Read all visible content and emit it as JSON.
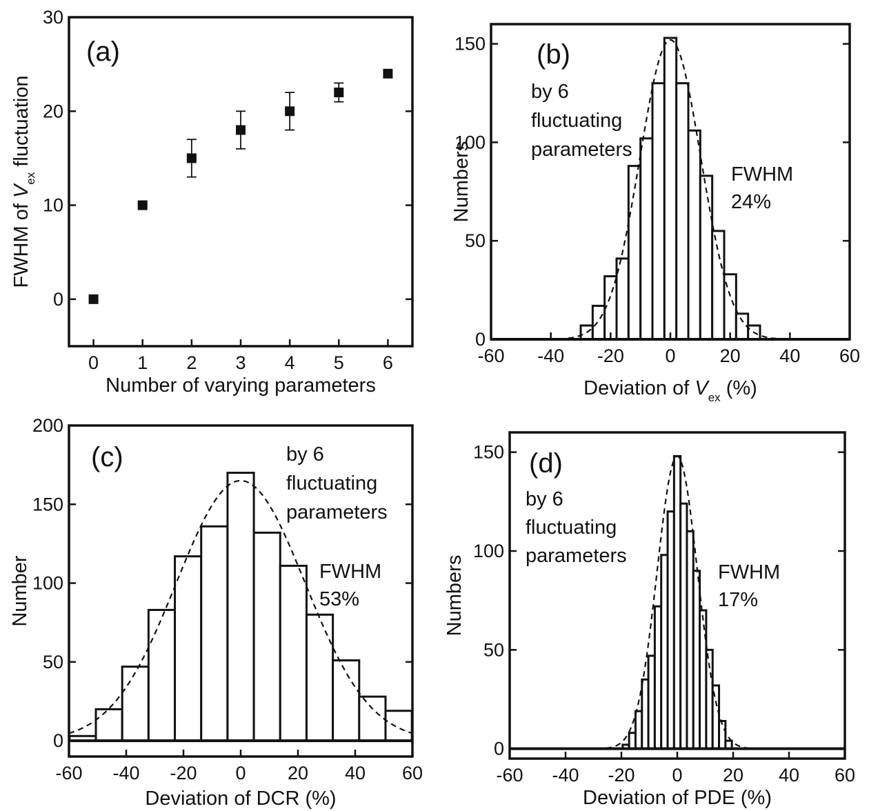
{
  "chart_data": [
    {
      "id": "a",
      "type": "scatter",
      "panel_label": "(a)",
      "xlabel": "Number of varying parameters",
      "ylabel": "FWHM of V",
      "ylabel_sub": "ex",
      "ylabel_suffix": " fluctuation",
      "xlim": [
        -0.5,
        6.5
      ],
      "ylim": [
        -5,
        30
      ],
      "xticks": [
        0,
        1,
        2,
        3,
        4,
        5,
        6
      ],
      "yticks": [
        0,
        10,
        20,
        30
      ],
      "grid": false,
      "points": [
        {
          "x": 0,
          "y": 0,
          "err": 0
        },
        {
          "x": 1,
          "y": 10,
          "err": 0
        },
        {
          "x": 2,
          "y": 15,
          "err": 2
        },
        {
          "x": 3,
          "y": 18,
          "err": 2
        },
        {
          "x": 4,
          "y": 20,
          "err": 2
        },
        {
          "x": 5,
          "y": 22,
          "err": 1
        },
        {
          "x": 6,
          "y": 24,
          "err": 0
        }
      ]
    },
    {
      "id": "b",
      "type": "bar",
      "panel_label": "(b)",
      "xlabel": "Deviation of V",
      "xlabel_sub": "ex",
      "xlabel_suffix": " (%)",
      "ylabel": "Numbers",
      "xlim": [
        -60,
        60
      ],
      "ylim": [
        0,
        160
      ],
      "xticks": [
        -60,
        -40,
        -20,
        0,
        20,
        40,
        60
      ],
      "yticks": [
        0,
        50,
        100,
        150
      ],
      "grid": false,
      "annotations": [
        "by 6",
        "fluctuating",
        "parameters"
      ],
      "fwhm_label": [
        "FWHM",
        "24%"
      ],
      "fit": {
        "amplitude": 152,
        "center": 0,
        "fwhm": 24
      },
      "bin_width": 4,
      "bins": [
        {
          "x": -28,
          "value": 7
        },
        {
          "x": -24,
          "value": 17
        },
        {
          "x": -20,
          "value": 32
        },
        {
          "x": -16,
          "value": 41
        },
        {
          "x": -12,
          "value": 88
        },
        {
          "x": -8,
          "value": 102
        },
        {
          "x": -4,
          "value": 130
        },
        {
          "x": 0,
          "value": 153
        },
        {
          "x": 4,
          "value": 130
        },
        {
          "x": 8,
          "value": 106
        },
        {
          "x": 12,
          "value": 83
        },
        {
          "x": 16,
          "value": 55
        },
        {
          "x": 20,
          "value": 33
        },
        {
          "x": 24,
          "value": 13
        },
        {
          "x": 28,
          "value": 7
        }
      ]
    },
    {
      "id": "c",
      "type": "bar",
      "panel_label": "(c)",
      "xlabel": "Deviation of DCR (%)",
      "ylabel": "Number",
      "xlim": [
        -60,
        60
      ],
      "ylim": [
        -10,
        200
      ],
      "xticks": [
        -60,
        -40,
        -20,
        0,
        20,
        40,
        60
      ],
      "yticks": [
        0,
        50,
        100,
        150,
        200
      ],
      "grid": false,
      "annotations": [
        "by 6",
        "fluctuating",
        "parameters"
      ],
      "fwhm_label": [
        "FWHM",
        "53%"
      ],
      "fit": {
        "amplitude": 165,
        "center": 0,
        "fwhm": 53
      },
      "bin_width": 9.2,
      "bins": [
        {
          "x": -55.2,
          "value": 3
        },
        {
          "x": -46,
          "value": 20
        },
        {
          "x": -36.8,
          "value": 47
        },
        {
          "x": -27.6,
          "value": 83
        },
        {
          "x": -18.4,
          "value": 117
        },
        {
          "x": -9.2,
          "value": 136
        },
        {
          "x": 0,
          "value": 170
        },
        {
          "x": 9.2,
          "value": 132
        },
        {
          "x": 18.4,
          "value": 111
        },
        {
          "x": 27.6,
          "value": 80
        },
        {
          "x": 36.8,
          "value": 51
        },
        {
          "x": 46,
          "value": 28
        },
        {
          "x": 55.2,
          "value": 19
        }
      ]
    },
    {
      "id": "d",
      "type": "bar",
      "panel_label": "(d)",
      "xlabel": "Deviation of PDE (%)",
      "ylabel": "Numbers",
      "xlim": [
        -60,
        60
      ],
      "ylim": [
        -5,
        160
      ],
      "xticks": [
        -60,
        -40,
        -20,
        0,
        20,
        40,
        60
      ],
      "yticks": [
        0,
        50,
        100,
        150
      ],
      "grid": false,
      "annotations": [
        "by 6",
        "fluctuating",
        "parameters"
      ],
      "fwhm_label": [
        "FWHM",
        "17%"
      ],
      "fit": {
        "amplitude": 148,
        "center": 0,
        "fwhm": 17
      },
      "bin_width": 2.3,
      "bins": [
        {
          "x": -18.4,
          "value": 2
        },
        {
          "x": -16.1,
          "value": 8
        },
        {
          "x": -13.8,
          "value": 19
        },
        {
          "x": -11.5,
          "value": 35
        },
        {
          "x": -9.2,
          "value": 47
        },
        {
          "x": -6.9,
          "value": 72
        },
        {
          "x": -4.6,
          "value": 98
        },
        {
          "x": -2.3,
          "value": 120
        },
        {
          "x": 0,
          "value": 148
        },
        {
          "x": 2.3,
          "value": 124
        },
        {
          "x": 4.6,
          "value": 110
        },
        {
          "x": 6.9,
          "value": 90
        },
        {
          "x": 9.2,
          "value": 70
        },
        {
          "x": 11.5,
          "value": 50
        },
        {
          "x": 13.8,
          "value": 32
        },
        {
          "x": 16.1,
          "value": 14
        },
        {
          "x": 18.4,
          "value": 4
        }
      ]
    }
  ]
}
